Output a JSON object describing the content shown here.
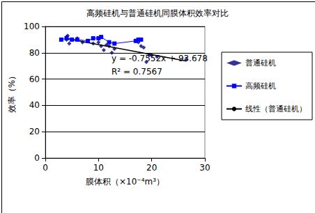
{
  "chart_data": {
    "type": "scatter",
    "title": "高频硅机与普通硅机同膜体积效率对比",
    "x_label": "膜体积（×10⁻⁴m³）",
    "y_label": "效率（%）",
    "xlim": [
      0,
      30
    ],
    "xticks": [
      0,
      10,
      20,
      30
    ],
    "ylim": [
      0,
      100
    ],
    "yticks": [
      0,
      20,
      40,
      60,
      80,
      100
    ],
    "grid": true,
    "legend": "right",
    "annotations": [
      "y = -0.7552x + 93.678",
      "R² = 0.7567"
    ],
    "series": [
      {
        "name": "普通硅机",
        "type": "scatter",
        "marker": "diamond",
        "line_style": "none",
        "color": "#000080",
        "x": [
          4,
          4.2,
          4.5,
          4,
          5,
          6,
          7,
          8,
          9,
          10,
          10.5,
          11,
          11.5,
          12,
          13,
          12.5,
          17.5,
          18,
          18.5,
          19,
          19.5,
          20,
          21,
          26.5
        ],
        "values": [
          92,
          93,
          87,
          90,
          90,
          91,
          88,
          89,
          87,
          88,
          85,
          82,
          86,
          85,
          83,
          80,
          88,
          85,
          84,
          73,
          78,
          78,
          77,
          75
        ]
      },
      {
        "name": "高频硅机",
        "type": "line",
        "marker": "square",
        "line_style": "solid",
        "color": "#0000ff",
        "x": [
          3,
          4,
          5,
          6,
          8,
          9,
          10,
          10.5,
          12,
          13,
          17,
          17.5,
          18
        ],
        "values": [
          90,
          91,
          90,
          90,
          89,
          91,
          91,
          92,
          88,
          87,
          89,
          90,
          90
        ]
      },
      {
        "name": "线性（普通硅机）",
        "type": "line",
        "marker": "none",
        "line_style": "solid",
        "color": "#000000",
        "x": [
          4,
          26.5
        ],
        "values": [
          90.7,
          73.7
        ]
      }
    ]
  }
}
